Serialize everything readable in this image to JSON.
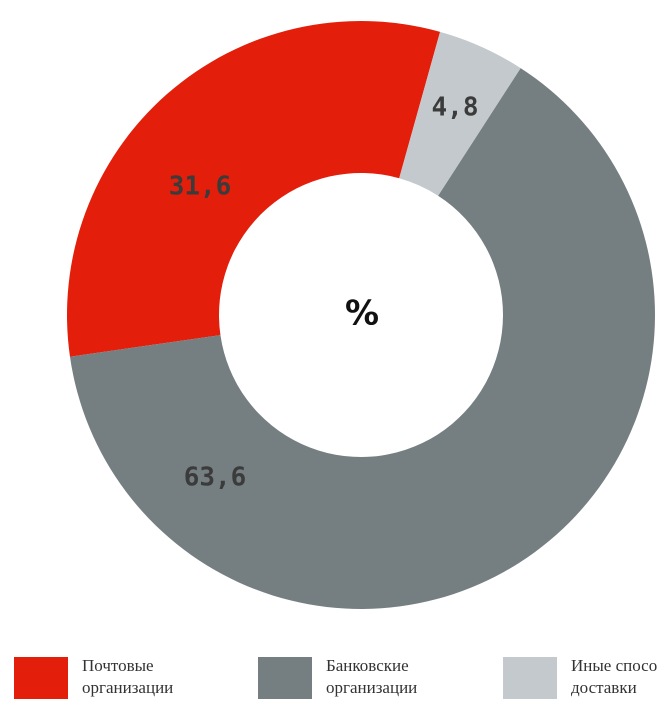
{
  "chart_data": {
    "type": "donut",
    "center_label": "%",
    "categories": [
      "Иные способы доставки",
      "Банковские организации",
      "Почтовые организации"
    ],
    "values": [
      4.8,
      63.6,
      31.6
    ],
    "value_labels": [
      "4,8",
      "63,6",
      "31,6"
    ],
    "colors": [
      "#c3c9cc",
      "#757f82",
      "#e31e0b"
    ],
    "legend_order": [
      2,
      1,
      0
    ]
  }
}
